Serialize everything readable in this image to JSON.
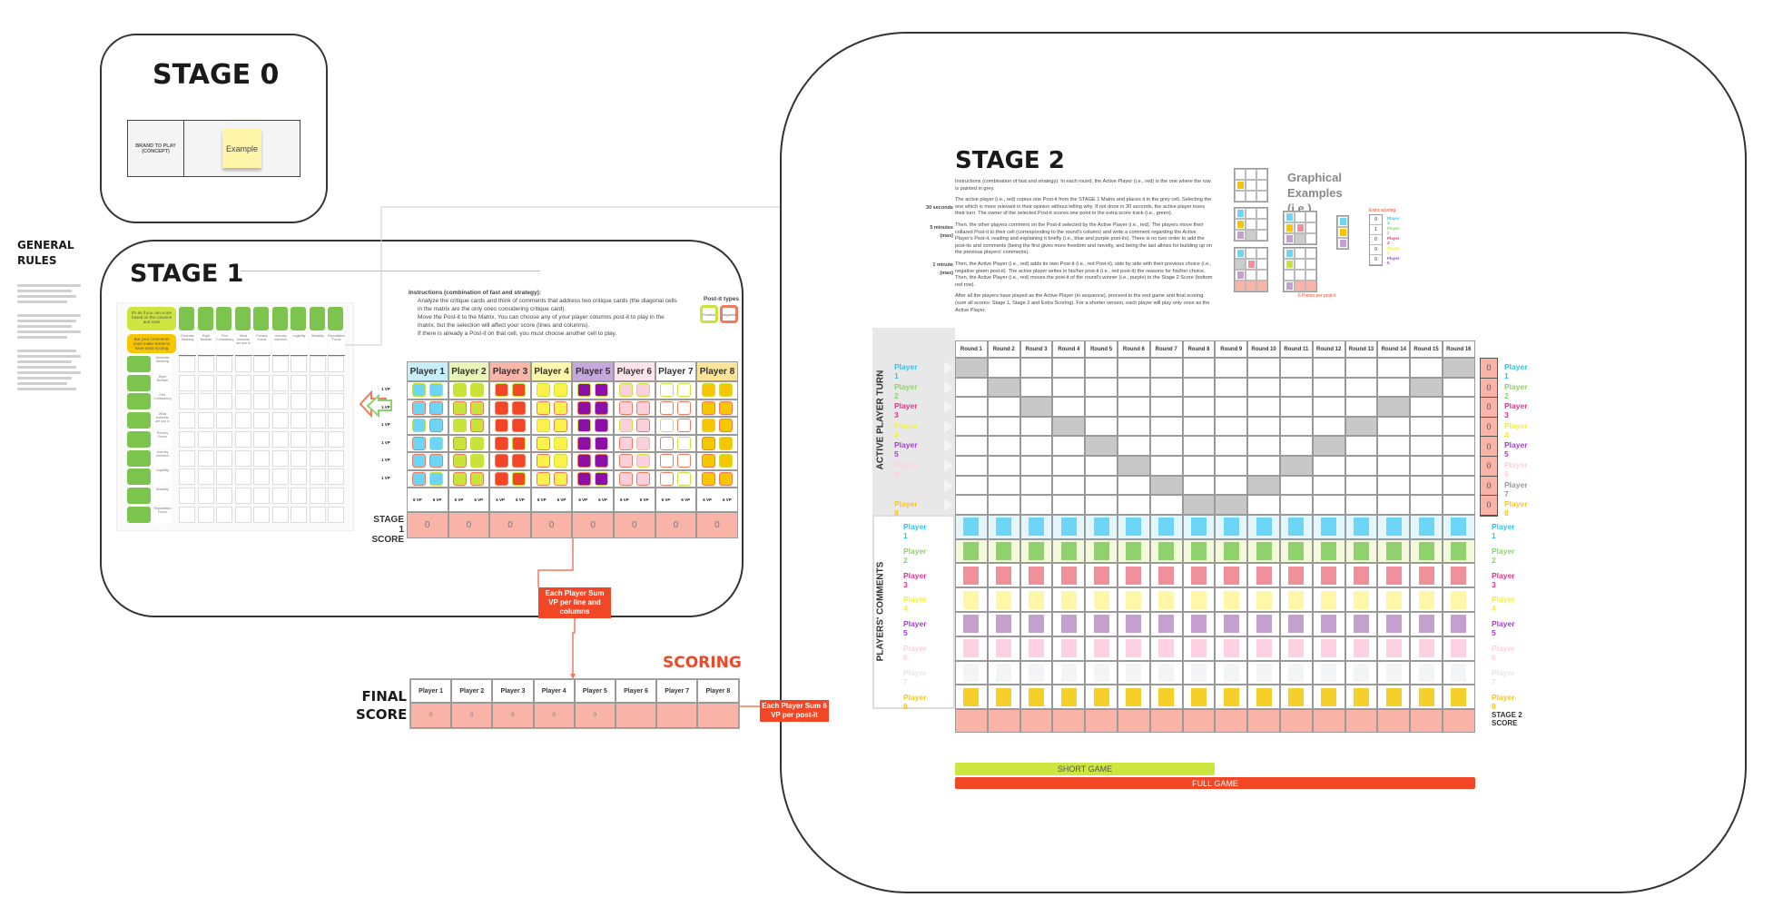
{
  "stage0": {
    "title": "STAGE 0",
    "brand_label": "BRAND TO PLAY (CONCEPT)",
    "sticky": "Example"
  },
  "general_rules": {
    "title": "GENERAL RULES"
  },
  "stage1": {
    "title": "STAGE 1",
    "lime_note": "It's as if you can score based on the columns and rows",
    "orange_note": "But your comments must make sense to have extra scoring",
    "criteria": [
      "Generate Meaning",
      "Right Breadth",
      "Fine Consistency",
      "What business are you in",
      "Primary Focus",
      "Journey Intention",
      "Legibility",
      "Modality",
      "Repudiation Focus"
    ],
    "instructions": {
      "heading": "Instructions (combination of fast and strategy):",
      "bullets": [
        "Analyze the critique cards and think of comments that address two critique cards (the diagonal cells in the matrix are the only ones considering critique card).",
        "Move the Post-it to the Matrix. You can choose any of your player columns post-it to play in the matrix, but the selection will affect your score (lines and columns).",
        "If there is already a Post-it on that cell, you must choose another cell to play."
      ]
    },
    "postit_types": {
      "title": "Post-it types",
      "positive": "Positive",
      "negative": "Negative"
    },
    "row_label": "1 VP",
    "vp_label": "6 VP",
    "row_pattern": [
      "pp",
      "nn",
      "pn",
      "np",
      "nn",
      "np"
    ],
    "score_label": "STAGE 1 SCORE",
    "scores": [
      "0",
      "0",
      "0",
      "0",
      "0",
      "0",
      "0",
      "0"
    ]
  },
  "players": [
    {
      "name": "Player 1",
      "header": "#c8eef9",
      "postit": "#6dd6f7",
      "label": "#2ec5f0",
      "comment": "#6dd6f7",
      "row_bg": "#e3f6fc"
    },
    {
      "name": "Player 2",
      "header": "#e9f5b6",
      "postit": "#c9e33a",
      "label": "#8fd16c",
      "comment": "#8fd16c",
      "row_bg": "#f4f9dc"
    },
    {
      "name": "Player 3",
      "header": "#f9b5a8",
      "postit": "#f24726",
      "label": "#e8318a",
      "comment": "#f0909a",
      "row_bg": "#ffffff"
    },
    {
      "name": "Player 4",
      "header": "#fdf6ad",
      "postit": "#fbf14a",
      "label": "#f5ef3a",
      "comment": "#fff6a8",
      "row_bg": "#ffffff"
    },
    {
      "name": "Player 5",
      "header": "#c6a8dd",
      "postit": "#8c10a8",
      "label": "#a53ed1",
      "comment": "#c49fd0",
      "row_bg": "#ffffff"
    },
    {
      "name": "Player 6",
      "header": "#fde4ea",
      "postit": "#fad0dc",
      "label": "#fcd0e0",
      "comment": "#ffd0e2",
      "row_bg": "#ffffff"
    },
    {
      "name": "Player 7",
      "header": "#ffffff",
      "postit": "#ffffff",
      "label": "#e6e6e6",
      "comment": "#f3f4f6",
      "row_bg": "#ffffff"
    },
    {
      "name": "Player 8",
      "header": "#fbe39a",
      "postit": "#f7c600",
      "label": "#f5c524",
      "comment": "#f5d02a",
      "row_bg": "#ffffff"
    }
  ],
  "sum_label_1": "Each Player Sum VP per line and columns",
  "final": {
    "title": "FINAL SCORE",
    "scoring": "SCORING",
    "scores": [
      "0",
      "0",
      "0",
      "0",
      "0",
      "",
      "",
      ""
    ]
  },
  "stage2": {
    "title": "STAGE 2",
    "instructions": [
      "Instructions (combination of fast and strategy): In each round, the Active Player (i.e., red) is the one where the row is painted in grey.",
      "The active player (i.e., red) copies one Post-it from the STAGE 1 Matrix and places it in the grey cell. Selecting the one which is more relevant in their opinion without telling why. If not done in 30 seconds, the active player loses their turn. The owner of the selected Post-it scores one point in the extra score track (i.e., green).",
      "Then, the other players comment on the Post-it selected by the Active Player (i.e., red). The players move their collared Post-it to their cell (corresponding to the round's column) and write a comment regarding the Active Player's Post-it, reading and explaining it briefly (i.e., blue and purple post-its). There is no turn order to add the post-its and comments (being the first gives more freedom and novelty, and being the last allows for building up on the previous players' comments).",
      "Then, the Active Player (i.e., red) adds its own Post-it (i.e., red Post-it), side by side with their previous choice (i.e., negative green post-it). The active player writes in his/her post-it (i.e., red post-it) the reasons for his/her choice. Then, the Active Player (i.e., red) moves the post-it of the round's winner (i.e., purple) to the Stage 2 Score (bottom red row).",
      "After all the players have played as the Active Player (in sequence), proceed to the end game and final scoring (sum all scores: Stage 1, Stage 2 and Extra Scoring). For a shorter version, each player will play only once as the Active Player."
    ],
    "times": [
      "30 seconds",
      "5 minutes (max)",
      "1 minute (max)"
    ],
    "graphical_title": "Graphical Examples (i.e.)",
    "extra_scoring": "Extra scoring",
    "per_postit": "6 Points per post-it",
    "example_scores": [
      "0",
      "1",
      "0",
      "0",
      "0"
    ],
    "rounds": [
      "Round 1",
      "Round 2",
      "Round 3",
      "Round 4",
      "Round 5",
      "Round 6",
      "Round 7",
      "Round 8",
      "Round 9",
      "Round 10",
      "Round 11",
      "Round 12",
      "Round 13",
      "Round 14",
      "Round 15",
      "Round 16"
    ],
    "active_label": "ACTIVE PLAYER TURN",
    "comments_label": "PLAYERS' COMMENTS",
    "extra_scores": [
      "0",
      "0",
      "0",
      "0",
      "0",
      "0",
      "0",
      "0"
    ],
    "score_label": "STAGE 2 SCORE",
    "short_game": "SHORT GAME",
    "full_game": "FULL GAME",
    "sum_label": "Each Player Sum 6 VP per post-it",
    "colors": {
      "grey_cell": "#c8c8c8",
      "score_row": "#f9b3a7",
      "short": "#cde53f",
      "full": "#f24726"
    }
  }
}
